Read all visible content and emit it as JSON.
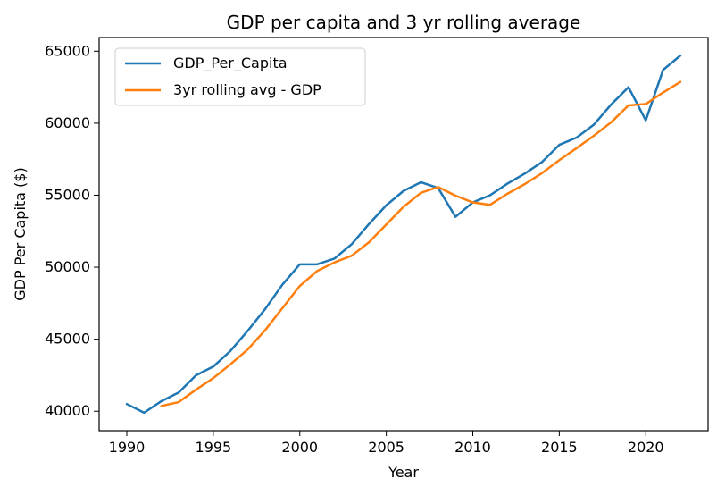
{
  "chart_data": {
    "type": "line",
    "title": "GDP per capita and 3 yr rolling average",
    "xlabel": "Year",
    "ylabel": "GDP Per Capita ($)",
    "xlim": [
      1988.4,
      2023.6
    ],
    "ylim": [
      38650,
      65950
    ],
    "x_ticks": [
      1990,
      1995,
      2000,
      2005,
      2010,
      2015,
      2020
    ],
    "y_ticks": [
      40000,
      45000,
      50000,
      55000,
      60000,
      65000
    ],
    "grid": false,
    "legend_position": "top-left",
    "series": [
      {
        "name": "GDP_Per_Capita",
        "color": "#1f77b4",
        "x": [
          1990,
          1991,
          1992,
          1993,
          1994,
          1995,
          1996,
          1997,
          1998,
          1999,
          2000,
          2001,
          2002,
          2003,
          2004,
          2005,
          2006,
          2007,
          2008,
          2009,
          2010,
          2011,
          2012,
          2013,
          2014,
          2015,
          2016,
          2017,
          2018,
          2019,
          2020,
          2021,
          2022
        ],
        "values": [
          40500,
          39900,
          40700,
          41300,
          42500,
          43100,
          44200,
          45600,
          47100,
          48800,
          50200,
          50200,
          50600,
          51600,
          53000,
          54300,
          55300,
          55900,
          55500,
          53500,
          54500,
          55000,
          55800,
          56500,
          57300,
          58500,
          59000,
          59900,
          61300,
          62500,
          60200,
          63700,
          64700
        ]
      },
      {
        "name": "3yr rolling avg - GDP",
        "color": "#ff7f0e",
        "x": [
          1992,
          1993,
          1994,
          1995,
          1996,
          1997,
          1998,
          1999,
          2000,
          2001,
          2002,
          2003,
          2004,
          2005,
          2006,
          2007,
          2008,
          2009,
          2010,
          2011,
          2012,
          2013,
          2014,
          2015,
          2016,
          2017,
          2018,
          2019,
          2020,
          2021,
          2022
        ],
        "values": [
          40367,
          40633,
          41500,
          42300,
          43267,
          44300,
          45633,
          47167,
          48700,
          49733,
          50333,
          50800,
          51733,
          52967,
          54200,
          55167,
          55567,
          54967,
          54500,
          54333,
          55100,
          55767,
          56533,
          57433,
          58267,
          59133,
          60067,
          61233,
          61333,
          62133,
          62867
        ]
      }
    ]
  }
}
